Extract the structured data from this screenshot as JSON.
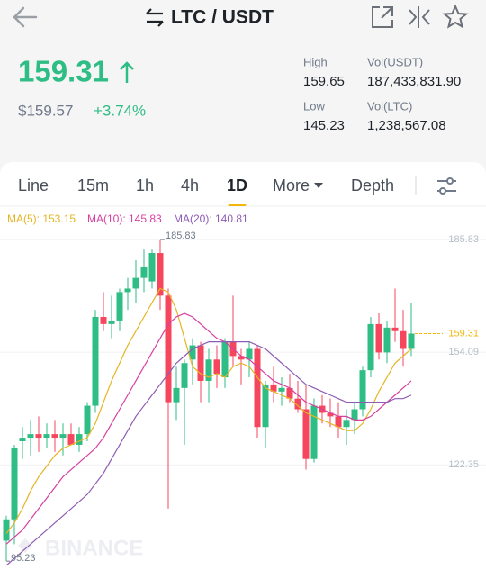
{
  "header": {
    "pair": "LTC / USDT"
  },
  "ticker": {
    "price": "159.31",
    "fiat": "$159.57",
    "change": "+3.74%",
    "stats": [
      {
        "label": "High",
        "value": "159.65"
      },
      {
        "label": "Vol(USDT)",
        "value": "187,433,831.90"
      },
      {
        "label": "Low",
        "value": "145.23"
      },
      {
        "label": "Vol(LTC)",
        "value": "1,238,567.08"
      }
    ]
  },
  "tabs": [
    "Line",
    "15m",
    "1h",
    "4h",
    "1D",
    "More",
    "Depth"
  ],
  "active_tab": 4,
  "watermark": "BINANCE",
  "chart_data": {
    "type": "candlestick",
    "up_color": "#2ebd85",
    "down_color": "#f6465d",
    "ylim": [
      94,
      188.6
    ],
    "yticks": [
      185.83,
      154.09,
      122.35
    ],
    "grid": true,
    "candles": {
      "open": [
        101,
        107,
        129,
        130,
        131,
        130,
        131,
        130,
        131,
        128,
        131,
        139,
        164,
        162,
        163,
        171,
        172,
        175,
        174,
        182,
        170,
        140,
        144,
        152,
        156,
        146,
        152,
        147,
        157,
        153,
        152,
        155,
        133,
        145,
        143,
        144,
        141,
        138,
        124,
        139,
        137,
        136,
        133,
        135,
        138,
        149,
        162,
        154,
        161,
        160,
        155
      ],
      "high": [
        108,
        128,
        133,
        135,
        136,
        134,
        135,
        134,
        134,
        133,
        140,
        166,
        171,
        170,
        172,
        175,
        180,
        183,
        183,
        185.83,
        172,
        150,
        152,
        158,
        157,
        155,
        156,
        158,
        170,
        155,
        157,
        156,
        146,
        150,
        147,
        148,
        146,
        145,
        141,
        142,
        141,
        140,
        138,
        140,
        150,
        164,
        165,
        163,
        172,
        166,
        168
      ],
      "low": [
        95.23,
        100,
        124,
        125,
        126,
        127,
        126,
        125,
        128,
        126,
        129,
        137,
        160,
        158,
        160,
        166,
        168,
        171,
        172,
        166,
        110,
        135,
        128,
        145,
        140,
        140,
        144,
        144,
        150,
        145,
        147,
        130,
        127,
        140,
        139,
        140,
        137,
        121,
        123,
        134,
        133,
        130,
        128,
        131,
        136,
        147,
        152,
        151,
        157,
        150,
        153
      ],
      "close": [
        107,
        127,
        130,
        131,
        130,
        131,
        130,
        131,
        128,
        131,
        139,
        164,
        162,
        163,
        171,
        172,
        175,
        178,
        182,
        170,
        140,
        144,
        151,
        156,
        146,
        152,
        148,
        157,
        153,
        152,
        155,
        133,
        145,
        143,
        144,
        141,
        138,
        124,
        139,
        137,
        136,
        133,
        135,
        138,
        149,
        162,
        154,
        161,
        160,
        155,
        159.31
      ]
    },
    "series": [
      {
        "name": "MA(5): 153.15",
        "color": "#e6b422",
        "values": [
          103,
          106,
          110,
          115,
          119,
          122,
          125,
          127,
          128,
          129,
          130,
          134,
          140,
          146,
          151,
          156,
          160,
          164,
          168,
          172,
          171,
          166,
          158,
          150,
          148,
          147,
          148,
          147,
          150,
          151,
          150,
          147,
          144,
          143,
          142,
          141,
          139,
          137,
          136,
          135,
          134,
          133,
          132,
          132,
          134,
          138,
          143,
          147,
          151,
          153,
          155
        ]
      },
      {
        "name": "MA(10): 145.83",
        "color": "#d6409f",
        "values": [
          100,
          102,
          104,
          107,
          110,
          113,
          116,
          119,
          121,
          123,
          125,
          127,
          130,
          134,
          138,
          142,
          146,
          150,
          154,
          158,
          162,
          164,
          165,
          164,
          162,
          160,
          158,
          157,
          155,
          153,
          152,
          150,
          148,
          146,
          145,
          144,
          142,
          140,
          139,
          138,
          137,
          136,
          136,
          135,
          135,
          136,
          138,
          140,
          142,
          144,
          146
        ]
      },
      {
        "name": "MA(20): 140.81",
        "color": "#8e5cb5",
        "values": [
          94,
          96,
          98,
          100,
          102,
          104,
          106,
          108,
          110,
          112,
          114,
          117,
          120,
          124,
          128,
          132,
          136,
          139,
          142,
          145,
          148,
          151,
          153,
          155,
          156,
          157,
          157,
          157,
          157,
          157,
          157,
          156,
          155,
          153,
          151,
          149,
          147,
          145,
          144,
          143,
          142,
          141,
          140,
          140,
          140,
          140,
          140,
          140,
          141,
          141,
          142
        ]
      }
    ]
  }
}
